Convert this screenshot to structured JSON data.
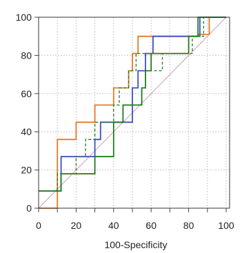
{
  "chart_data": {
    "type": "line",
    "title": "",
    "xlabel": "100-Specificity",
    "ylabel": "",
    "xlim": [
      0,
      100
    ],
    "ylim": [
      0,
      100
    ],
    "x_ticks": [
      "0",
      "10",
      "20",
      "30",
      "40",
      "50",
      "60",
      "70",
      "80",
      "90",
      "100"
    ],
    "y_ticks": [
      "0",
      "20",
      "40",
      "60",
      "80",
      "100"
    ],
    "grid": true,
    "legend": "none",
    "reference_line": {
      "color": "#c9a0b0",
      "points": [
        [
          0,
          0
        ],
        [
          100,
          100
        ]
      ]
    },
    "series": [
      {
        "color": "#e87722",
        "style": "solid",
        "points": [
          [
            0,
            0
          ],
          [
            10,
            0
          ],
          [
            10,
            36
          ],
          [
            20,
            36
          ],
          [
            20,
            45
          ],
          [
            30,
            45
          ],
          [
            30,
            54
          ],
          [
            40,
            54
          ],
          [
            40,
            63
          ],
          [
            48,
            63
          ],
          [
            48,
            72
          ],
          [
            50,
            72
          ],
          [
            50,
            81
          ],
          [
            53,
            81
          ],
          [
            53,
            90
          ],
          [
            85,
            90
          ],
          [
            85,
            91
          ],
          [
            91,
            91
          ],
          [
            91,
            100
          ],
          [
            100,
            100
          ]
        ]
      },
      {
        "color": "#3b4fc4",
        "style": "solid",
        "points": [
          [
            0,
            9
          ],
          [
            10,
            9
          ],
          [
            12,
            9
          ],
          [
            12,
            27
          ],
          [
            30,
            27
          ],
          [
            30,
            36
          ],
          [
            33,
            36
          ],
          [
            33,
            45
          ],
          [
            50,
            45
          ],
          [
            50,
            63
          ],
          [
            53,
            63
          ],
          [
            53,
            72
          ],
          [
            57,
            72
          ],
          [
            57,
            81
          ],
          [
            61,
            81
          ],
          [
            61,
            90
          ],
          [
            86,
            90
          ],
          [
            86,
            100
          ],
          [
            100,
            100
          ]
        ]
      },
      {
        "color": "#1e7a1e",
        "style": "solid",
        "points": [
          [
            0,
            9
          ],
          [
            12,
            9
          ],
          [
            12,
            18
          ],
          [
            30,
            18
          ],
          [
            30,
            27
          ],
          [
            40,
            27
          ],
          [
            40,
            45
          ],
          [
            45,
            45
          ],
          [
            45,
            54
          ],
          [
            55,
            54
          ],
          [
            55,
            63
          ],
          [
            57,
            63
          ],
          [
            57,
            72
          ],
          [
            60,
            72
          ],
          [
            60,
            81
          ],
          [
            80,
            81
          ],
          [
            80,
            90
          ],
          [
            85,
            90
          ],
          [
            85,
            100
          ],
          [
            100,
            100
          ]
        ]
      },
      {
        "color": "#1e7a1e",
        "style": "dashed",
        "points": [
          [
            0,
            9
          ],
          [
            10,
            9
          ],
          [
            10,
            18
          ],
          [
            20,
            18
          ],
          [
            20,
            27
          ],
          [
            25,
            27
          ],
          [
            25,
            36
          ],
          [
            30,
            36
          ],
          [
            30,
            45
          ],
          [
            40,
            45
          ],
          [
            40,
            54
          ],
          [
            43,
            54
          ],
          [
            43,
            63
          ],
          [
            48,
            63
          ],
          [
            48,
            72
          ],
          [
            52,
            72
          ],
          [
            52,
            81
          ],
          [
            60,
            81
          ],
          [
            60,
            72
          ],
          [
            66,
            72
          ],
          [
            66,
            81
          ],
          [
            82,
            81
          ],
          [
            82,
            90
          ],
          [
            88,
            90
          ],
          [
            88,
            100
          ],
          [
            100,
            100
          ]
        ]
      }
    ]
  }
}
